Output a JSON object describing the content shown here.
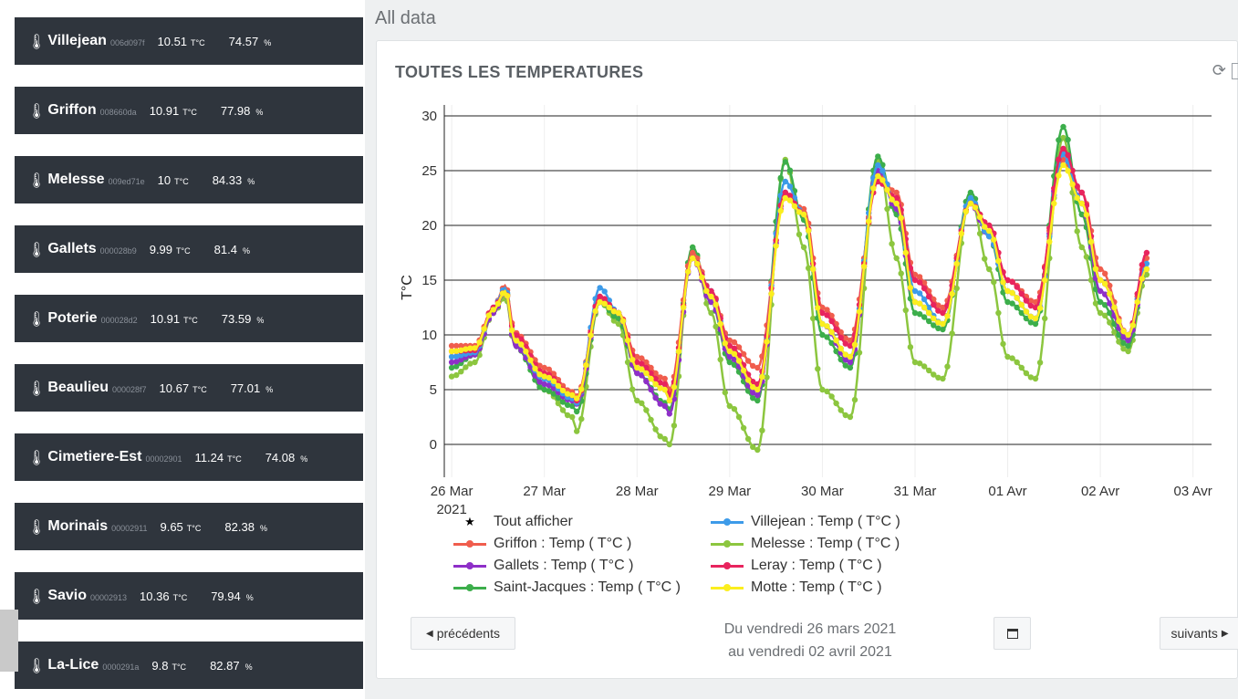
{
  "sensors": [
    {
      "name": "Villejean",
      "id": "006d097f",
      "temp": "10.51",
      "temp_unit": "T°C",
      "hum": "74.57",
      "hum_unit": "%"
    },
    {
      "name": "Griffon",
      "id": "008660da",
      "temp": "10.91",
      "temp_unit": "T°C",
      "hum": "77.98",
      "hum_unit": "%"
    },
    {
      "name": "Melesse",
      "id": "009ed71e",
      "temp": "10",
      "temp_unit": "T°C",
      "hum": "84.33",
      "hum_unit": "%"
    },
    {
      "name": "Gallets",
      "id": "000028b9",
      "temp": "9.99",
      "temp_unit": "T°C",
      "hum": "81.4",
      "hum_unit": "%"
    },
    {
      "name": "Poterie",
      "id": "000028d2",
      "temp": "10.91",
      "temp_unit": "T°C",
      "hum": "73.59",
      "hum_unit": "%"
    },
    {
      "name": "Beaulieu",
      "id": "000028f7",
      "temp": "10.67",
      "temp_unit": "T°C",
      "hum": "77.01",
      "hum_unit": "%"
    },
    {
      "name": "Cimetiere-Est",
      "id": "00002901",
      "temp": "11.24",
      "temp_unit": "T°C",
      "hum": "74.08",
      "hum_unit": "%"
    },
    {
      "name": "Morinais",
      "id": "00002911",
      "temp": "9.65",
      "temp_unit": "T°C",
      "hum": "82.38",
      "hum_unit": "%"
    },
    {
      "name": "Savio",
      "id": "00002913",
      "temp": "10.36",
      "temp_unit": "T°C",
      "hum": "79.94",
      "hum_unit": "%"
    },
    {
      "name": "La-Lice",
      "id": "0000291a",
      "temp": "9.8",
      "temp_unit": "T°C",
      "hum": "82.87",
      "hum_unit": "%"
    }
  ],
  "header": {
    "title": "All data"
  },
  "panel": {
    "title": "TOUTES LES TEMPERATURES",
    "refresh_icon": "refresh-icon"
  },
  "legend": {
    "show_all": "Tout afficher"
  },
  "nav": {
    "prev_label": "précédents",
    "next_label": "suivants",
    "date_line1": "Du vendredi 26 mars 2021",
    "date_line2": "au vendredi 02 avril 2021",
    "calendar_icon": "calendar-icon"
  },
  "chart_data": {
    "type": "line",
    "ylabel": "T°C",
    "ylim": [
      -3,
      31
    ],
    "yticks": [
      0,
      5,
      10,
      15,
      20,
      25,
      30
    ],
    "xlim": [
      -0.08,
      8.2
    ],
    "xtick_labels": [
      "26 Mar",
      "27 Mar",
      "28 Mar",
      "29 Mar",
      "30 Mar",
      "31 Mar",
      "01 Avr",
      "02 Avr",
      "03 Avr"
    ],
    "xtick_year": "2021",
    "grid": "horizontal",
    "x_unit": "days since 26 Mar 2021",
    "series": [
      {
        "name": "Villejean : Temp ( T°C )",
        "color": "#3d9be9",
        "values": [
          [
            0,
            8
          ],
          [
            0.25,
            8.4
          ],
          [
            0.45,
            12.5
          ],
          [
            0.58,
            14.3
          ],
          [
            0.68,
            9.5
          ],
          [
            1,
            6
          ],
          [
            1.3,
            4.2
          ],
          [
            1.35,
            3.8
          ],
          [
            1.6,
            14.3
          ],
          [
            1.8,
            12
          ],
          [
            2,
            7
          ],
          [
            2.3,
            5
          ],
          [
            2.35,
            4
          ],
          [
            2.6,
            17
          ],
          [
            2.8,
            14
          ],
          [
            3,
            8.5
          ],
          [
            3.3,
            5
          ],
          [
            3.6,
            24
          ],
          [
            3.8,
            21
          ],
          [
            4,
            11
          ],
          [
            4.3,
            8
          ],
          [
            4.6,
            25.5
          ],
          [
            4.8,
            22
          ],
          [
            5,
            14
          ],
          [
            5.3,
            11
          ],
          [
            5.6,
            22.5
          ],
          [
            5.8,
            19
          ],
          [
            6,
            14
          ],
          [
            6.3,
            11.5
          ],
          [
            6.6,
            26.5
          ],
          [
            6.8,
            22
          ],
          [
            7,
            15
          ],
          [
            7.3,
            10
          ],
          [
            7.5,
            16.5
          ]
        ]
      },
      {
        "name": "Griffon : Temp ( T°C )",
        "color": "#f05d4d",
        "values": [
          [
            0,
            9
          ],
          [
            0.25,
            9
          ],
          [
            0.45,
            12.5
          ],
          [
            0.58,
            14.5
          ],
          [
            0.68,
            10.2
          ],
          [
            1,
            7
          ],
          [
            1.3,
            4.8
          ],
          [
            1.35,
            4.4
          ],
          [
            1.6,
            13.5
          ],
          [
            1.8,
            12
          ],
          [
            2,
            8
          ],
          [
            2.3,
            6
          ],
          [
            2.35,
            5
          ],
          [
            2.6,
            17.5
          ],
          [
            2.8,
            14
          ],
          [
            3,
            9.5
          ],
          [
            3.3,
            7
          ],
          [
            3.6,
            22.5
          ],
          [
            3.8,
            21.5
          ],
          [
            4,
            12.5
          ],
          [
            4.3,
            9.5
          ],
          [
            4.6,
            24.5
          ],
          [
            4.8,
            23
          ],
          [
            5,
            15.5
          ],
          [
            5.3,
            12.5
          ],
          [
            5.6,
            22
          ],
          [
            5.8,
            20
          ],
          [
            6,
            15
          ],
          [
            6.3,
            13
          ],
          [
            6.6,
            26
          ],
          [
            6.8,
            23
          ],
          [
            7,
            16
          ],
          [
            7.3,
            10
          ],
          [
            7.5,
            17
          ]
        ]
      },
      {
        "name": "Gallets : Temp ( T°C )",
        "color": "#8e2fc8",
        "values": [
          [
            0,
            7.5
          ],
          [
            0.25,
            8.2
          ],
          [
            0.45,
            12
          ],
          [
            0.58,
            14
          ],
          [
            0.68,
            9
          ],
          [
            1,
            5.5
          ],
          [
            1.3,
            4
          ],
          [
            1.35,
            3.7
          ],
          [
            1.6,
            13
          ],
          [
            1.8,
            12
          ],
          [
            2,
            6.5
          ],
          [
            2.3,
            3.5
          ],
          [
            2.35,
            2.8
          ],
          [
            2.6,
            17
          ],
          [
            2.8,
            13
          ],
          [
            3,
            8
          ],
          [
            3.3,
            4.5
          ],
          [
            3.6,
            23
          ],
          [
            3.8,
            21
          ],
          [
            4,
            11
          ],
          [
            4.3,
            7.5
          ],
          [
            4.6,
            25
          ],
          [
            4.8,
            21.5
          ],
          [
            5,
            13
          ],
          [
            5.3,
            11
          ],
          [
            5.6,
            22
          ],
          [
            5.8,
            19
          ],
          [
            6,
            14
          ],
          [
            6.3,
            11.5
          ],
          [
            6.6,
            27
          ],
          [
            6.8,
            22
          ],
          [
            7,
            14
          ],
          [
            7.3,
            9.5
          ],
          [
            7.5,
            16
          ]
        ]
      },
      {
        "name": "Saint-Jacques : Temp ( T°C )",
        "color": "#3cae4b",
        "values": [
          [
            0,
            7
          ],
          [
            0.25,
            8.2
          ],
          [
            0.45,
            12
          ],
          [
            0.58,
            14.2
          ],
          [
            0.68,
            9
          ],
          [
            1,
            5
          ],
          [
            1.3,
            3.5
          ],
          [
            1.35,
            3
          ],
          [
            1.6,
            13
          ],
          [
            1.8,
            11.5
          ],
          [
            2,
            6.5
          ],
          [
            2.3,
            3.8
          ],
          [
            2.35,
            3.2
          ],
          [
            2.6,
            18
          ],
          [
            2.8,
            13
          ],
          [
            3,
            7.5
          ],
          [
            3.3,
            4
          ],
          [
            3.6,
            25.8
          ],
          [
            3.8,
            20.5
          ],
          [
            4,
            10
          ],
          [
            4.3,
            7
          ],
          [
            4.6,
            26.3
          ],
          [
            4.8,
            21
          ],
          [
            5,
            12
          ],
          [
            5.3,
            10.5
          ],
          [
            5.6,
            23
          ],
          [
            5.8,
            19
          ],
          [
            6,
            13
          ],
          [
            6.3,
            11
          ],
          [
            6.6,
            29
          ],
          [
            6.8,
            21
          ],
          [
            7,
            13
          ],
          [
            7.3,
            9
          ],
          [
            7.5,
            16
          ]
        ]
      },
      {
        "name": "Melesse : Temp ( T°C )",
        "color": "#8cc63f",
        "values": [
          [
            0,
            6.2
          ],
          [
            0.25,
            7.5
          ],
          [
            0.45,
            12
          ],
          [
            0.58,
            13.5
          ],
          [
            0.68,
            9
          ],
          [
            1,
            5
          ],
          [
            1.3,
            2.5
          ],
          [
            1.35,
            1.2
          ],
          [
            1.6,
            13
          ],
          [
            1.8,
            11
          ],
          [
            2,
            4
          ],
          [
            2.3,
            0.5
          ],
          [
            2.35,
            0
          ],
          [
            2.6,
            18
          ],
          [
            2.8,
            12
          ],
          [
            3,
            3.5
          ],
          [
            3.3,
            -0.5
          ],
          [
            3.6,
            26
          ],
          [
            3.8,
            18
          ],
          [
            4,
            5
          ],
          [
            4.3,
            2.5
          ],
          [
            4.6,
            26
          ],
          [
            4.8,
            17
          ],
          [
            5,
            7.5
          ],
          [
            5.3,
            6
          ],
          [
            5.6,
            22.5
          ],
          [
            5.8,
            16
          ],
          [
            6,
            8
          ],
          [
            6.3,
            6
          ],
          [
            6.6,
            28
          ],
          [
            6.8,
            18
          ],
          [
            7,
            12
          ],
          [
            7.3,
            8.5
          ],
          [
            7.5,
            15.5
          ]
        ]
      },
      {
        "name": "Leray : Temp ( T°C )",
        "color": "#e8245e",
        "values": [
          [
            0,
            8.5
          ],
          [
            0.25,
            8.6
          ],
          [
            0.45,
            12.5
          ],
          [
            0.58,
            14
          ],
          [
            0.68,
            10
          ],
          [
            1,
            6.5
          ],
          [
            1.3,
            4.5
          ],
          [
            1.35,
            4
          ],
          [
            1.6,
            13.5
          ],
          [
            1.8,
            12
          ],
          [
            2,
            7.5
          ],
          [
            2.3,
            5.5
          ],
          [
            2.35,
            4.5
          ],
          [
            2.6,
            17
          ],
          [
            2.8,
            14
          ],
          [
            3,
            9
          ],
          [
            3.3,
            5.5
          ],
          [
            3.6,
            23
          ],
          [
            3.8,
            21
          ],
          [
            4,
            12
          ],
          [
            4.3,
            9
          ],
          [
            4.6,
            24
          ],
          [
            4.8,
            22.5
          ],
          [
            5,
            15
          ],
          [
            5.3,
            12
          ],
          [
            5.6,
            22
          ],
          [
            5.8,
            20
          ],
          [
            6,
            15
          ],
          [
            6.3,
            12.5
          ],
          [
            6.6,
            27
          ],
          [
            6.8,
            23
          ],
          [
            7,
            15
          ],
          [
            7.3,
            10
          ],
          [
            7.5,
            17.5
          ]
        ]
      },
      {
        "name": "Motte : Temp ( T°C )",
        "color": "#fbee1f",
        "values": [
          [
            0,
            8.5
          ],
          [
            0.25,
            8.8
          ],
          [
            0.45,
            12.3
          ],
          [
            0.58,
            14
          ],
          [
            0.68,
            9.5
          ],
          [
            1,
            6.2
          ],
          [
            1.3,
            4.5
          ],
          [
            1.35,
            4.2
          ],
          [
            1.6,
            13
          ],
          [
            1.8,
            12
          ],
          [
            2,
            7
          ],
          [
            2.3,
            5
          ],
          [
            2.35,
            4
          ],
          [
            2.6,
            17
          ],
          [
            2.8,
            13.5
          ],
          [
            3,
            8.5
          ],
          [
            3.3,
            5
          ],
          [
            3.6,
            22.5
          ],
          [
            3.8,
            21
          ],
          [
            4,
            11
          ],
          [
            4.3,
            8
          ],
          [
            4.6,
            24.5
          ],
          [
            4.8,
            22
          ],
          [
            5,
            13
          ],
          [
            5.3,
            11
          ],
          [
            5.6,
            22
          ],
          [
            5.8,
            19.5
          ],
          [
            6,
            14
          ],
          [
            6.3,
            11.5
          ],
          [
            6.6,
            25.5
          ],
          [
            6.8,
            22
          ],
          [
            7,
            15
          ],
          [
            7.3,
            10
          ],
          [
            7.5,
            16
          ]
        ]
      }
    ]
  }
}
